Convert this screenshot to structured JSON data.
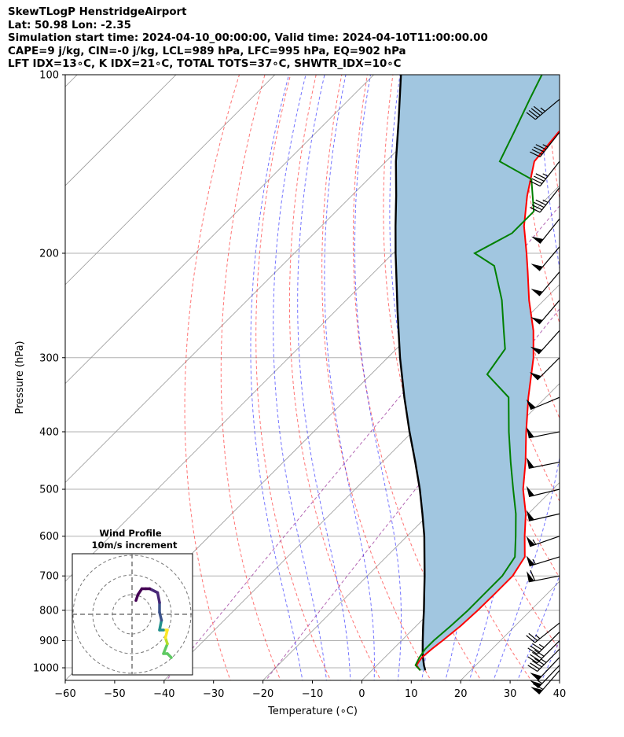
{
  "header": {
    "title": "SkewTLogP HenstridgeAirport",
    "location": "Lat: 50.98   Lon: -2.35",
    "times": "Simulation start time: 2024-04-10_00:00:00, Valid time: 2024-04-10T11:00:00.00",
    "indices1": "CAPE=9 j/kg, CIN=-0 j/kg, LCL=989 hPa, LFC=995 hPa, EQ=902 hPa",
    "indices2": "LFT IDX=13∘C, K IDX=21∘C, TOTAL TOTS=37∘C, SHWTR_IDX=10∘C"
  },
  "colors": {
    "temperature": "#ff0000",
    "dewpoint": "#008000",
    "parcel": "#000000",
    "cape_fill": "#a1c6e0",
    "dry_adiabat": "#ff0000",
    "moist_adiabat": "#0000ff",
    "mixing_ratio": "#800080",
    "isotherm": "#999999"
  },
  "chart_data": {
    "type": "skew-t",
    "xlabel": "Temperature (∘C)",
    "ylabel": "Pressure (hPa)",
    "xlim": [
      -60,
      40
    ],
    "ylim": [
      1050,
      100
    ],
    "x_ticks": [
      -60,
      -50,
      -40,
      -30,
      -20,
      -10,
      0,
      10,
      20,
      30,
      40
    ],
    "x_tick_labels": [
      "−60",
      "−50",
      "−40",
      "−30",
      "−20",
      "−10",
      "0",
      "10",
      "20",
      "30",
      "40"
    ],
    "p_ticks": [
      1000,
      900,
      800,
      700,
      600,
      500,
      400,
      300,
      200,
      100
    ],
    "series": [
      {
        "name": "temperature",
        "p": [
          1010,
          990,
          960,
          930,
          900,
          850,
          800,
          750,
          700,
          650,
          600,
          550,
          500,
          450,
          400,
          350,
          300,
          270,
          240,
          215,
          200,
          180,
          160,
          140,
          125,
          110,
          100
        ],
        "t": [
          9.8,
          8.0,
          7.5,
          7.8,
          8.3,
          9.0,
          9.3,
          9.4,
          9.4,
          8.0,
          3.8,
          -0.5,
          -6.0,
          -11.0,
          -17.0,
          -23.5,
          -30.5,
          -36.0,
          -43.0,
          -49.0,
          -53.0,
          -59.0,
          -64.5,
          -70.0,
          -71.0,
          -71.0,
          -71.5
        ]
      },
      {
        "name": "dewpoint",
        "p": [
          1010,
          990,
          960,
          930,
          900,
          850,
          800,
          750,
          700,
          650,
          600,
          550,
          500,
          450,
          400,
          350,
          320,
          290,
          270,
          240,
          210,
          200,
          185,
          170,
          150,
          140,
          125,
          110,
          100
        ],
        "t": [
          9.8,
          7.8,
          7.0,
          6.5,
          6.5,
          7.0,
          7.3,
          7.3,
          7.3,
          6.0,
          2.0,
          -2.5,
          -8.0,
          -14.0,
          -20.5,
          -27.5,
          -36.5,
          -38.0,
          -42.0,
          -48.5,
          -57.0,
          -63.5,
          -60.0,
          -60.0,
          -67.0,
          -77.0,
          -80.0,
          -83.5,
          -86.0
        ]
      },
      {
        "name": "parcel",
        "p": [
          1010,
          990,
          950,
          900,
          850,
          800,
          750,
          700,
          650,
          600,
          550,
          500,
          450,
          400,
          350,
          300,
          250,
          200,
          180,
          160,
          140,
          120,
          100
        ],
        "t": [
          10.8,
          9.5,
          7.1,
          4.3,
          1.4,
          -1.6,
          -4.9,
          -8.4,
          -12.3,
          -16.5,
          -21.4,
          -26.9,
          -33.3,
          -40.6,
          -48.6,
          -57.5,
          -67.5,
          -79.5,
          -85.0,
          -91.0,
          -98.0,
          -105.5,
          -114.5
        ]
      }
    ],
    "cape_fill": "between temperature and parcel",
    "reference_lines": {
      "isotherms_c": [
        -180,
        -160,
        -140,
        -120,
        -100,
        -80,
        -60,
        -40,
        -20,
        0,
        20,
        40
      ],
      "dry_adiabats_c": [
        -30,
        -20,
        -10,
        0,
        10,
        20,
        30,
        40,
        50,
        60,
        70,
        80,
        90,
        100
      ],
      "moist_adiabats_c": [
        -15,
        -10,
        -5,
        0,
        5,
        10,
        15,
        20,
        25,
        30,
        35
      ],
      "mixing_ratio_t_c": [
        -40,
        -20
      ]
    },
    "wind_barbs": [
      {
        "p": 1010,
        "u": 20,
        "v": 23
      },
      {
        "p": 990,
        "u": 20,
        "v": 21
      },
      {
        "p": 960,
        "u": 18,
        "v": 19
      },
      {
        "p": 930,
        "u": 17,
        "v": 17
      },
      {
        "p": 900,
        "u": 14,
        "v": 14
      },
      {
        "p": 870,
        "u": 12,
        "v": 12
      },
      {
        "p": 840,
        "u": 10,
        "v": 8
      },
      {
        "p": 700,
        "u": 31,
        "v": 6
      },
      {
        "p": 650,
        "u": 26,
        "v": 8
      },
      {
        "p": 600,
        "u": 26,
        "v": 9
      },
      {
        "p": 550,
        "u": 26,
        "v": 6
      },
      {
        "p": 500,
        "u": 25,
        "v": 6
      },
      {
        "p": 450,
        "u": 25,
        "v": 5
      },
      {
        "p": 400,
        "u": 25,
        "v": 5
      },
      {
        "p": 350,
        "u": 24,
        "v": 10
      },
      {
        "p": 300,
        "u": 18,
        "v": 18
      },
      {
        "p": 270,
        "u": 17,
        "v": 19
      },
      {
        "p": 240,
        "u": 17,
        "v": 20
      },
      {
        "p": 215,
        "u": 17,
        "v": 20
      },
      {
        "p": 195,
        "u": 16,
        "v": 19
      },
      {
        "p": 175,
        "u": 16,
        "v": 20
      },
      {
        "p": 155,
        "u": 15,
        "v": 19
      },
      {
        "p": 140,
        "u": 15,
        "v": 19
      },
      {
        "p": 125,
        "u": 15,
        "v": 19
      },
      {
        "p": 110,
        "u": 18,
        "v": 15
      }
    ],
    "hodograph": {
      "title": "Wind Profile",
      "subtitle": "10m/s increment",
      "ring_step_ms": 10,
      "rings": [
        1,
        2,
        3
      ],
      "range_ms": 30,
      "points_uv": [
        [
          20,
          -22
        ],
        [
          18,
          -20
        ],
        [
          16,
          -20
        ],
        [
          18,
          -15
        ],
        [
          17,
          -12
        ],
        [
          18,
          -8
        ],
        [
          16,
          -8
        ],
        [
          14,
          -8
        ],
        [
          15,
          -3
        ],
        [
          14,
          1
        ],
        [
          14,
          6
        ],
        [
          13,
          11
        ],
        [
          9,
          13
        ],
        [
          7,
          13
        ],
        [
          5,
          13
        ],
        [
          3,
          10
        ],
        [
          2,
          7
        ]
      ]
    }
  }
}
